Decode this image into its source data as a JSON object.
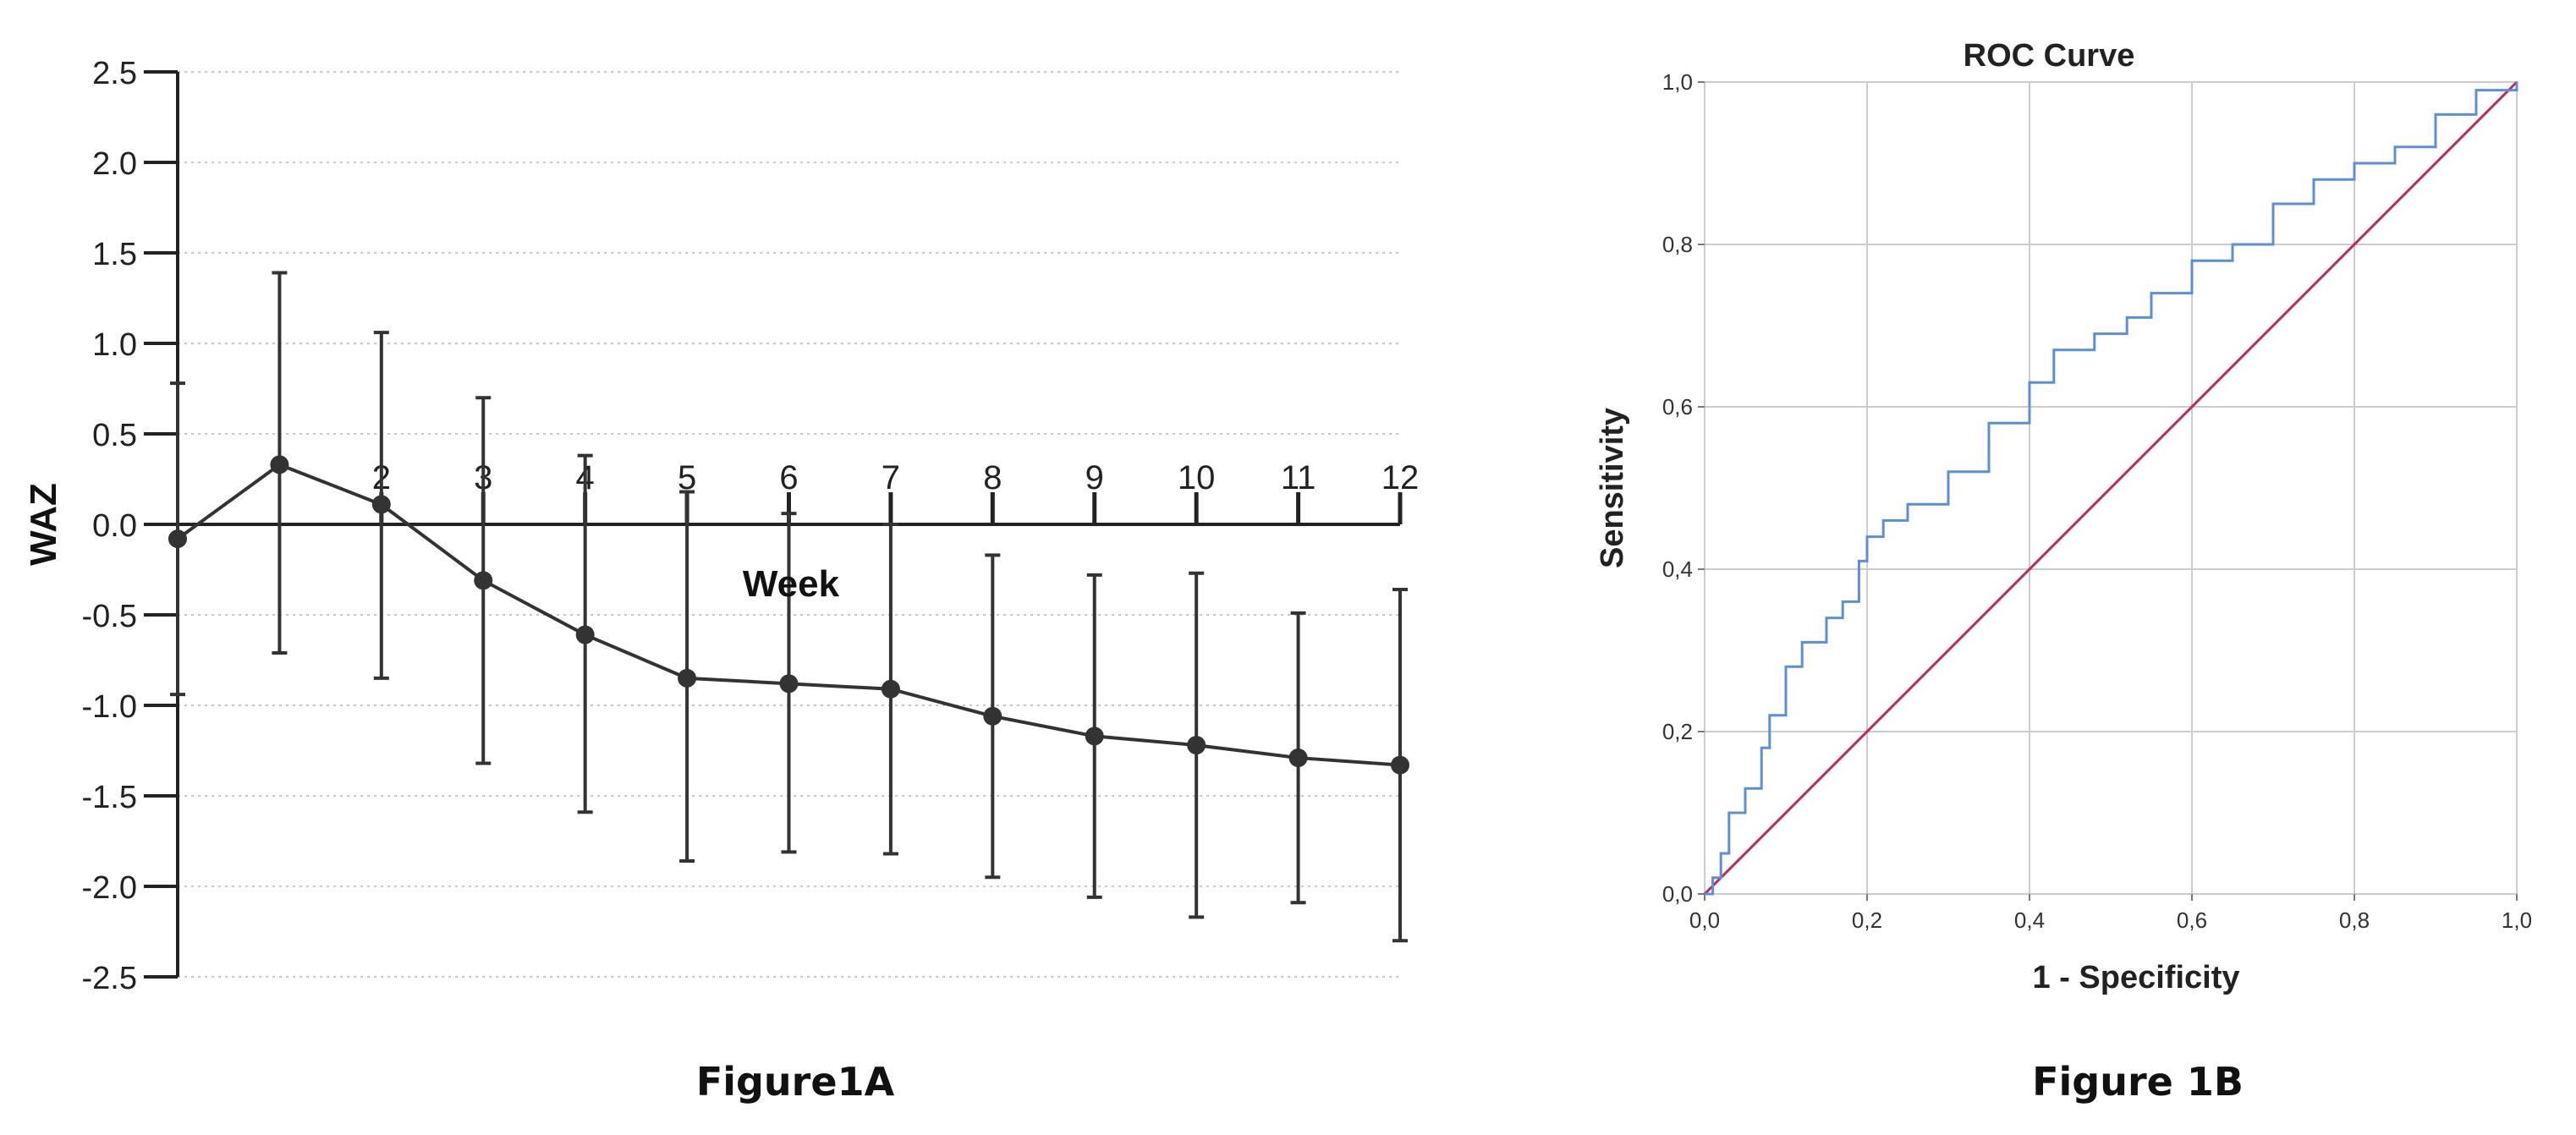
{
  "chart_data": [
    {
      "type": "line",
      "caption": "Figure1A",
      "ylabel": "WAZ",
      "xlabel": "Week",
      "xlim": [
        0,
        12
      ],
      "ylim": [
        -2.5,
        2.5
      ],
      "y_ticks": [
        "2.5",
        "2.0",
        "1.5",
        "1.0",
        "0.5",
        "0.0",
        "-0.5",
        "-1.0",
        "-1.5",
        "-2.0",
        "-2.5"
      ],
      "x_ticks": [
        "2",
        "3",
        "4",
        "5",
        "6",
        "7",
        "8",
        "9",
        "10",
        "11",
        "12"
      ],
      "grid": true,
      "series": [
        {
          "x": [
            0,
            1,
            2,
            3,
            4,
            5,
            6,
            7,
            8,
            9,
            10,
            11,
            12
          ],
          "mean": [
            -0.08,
            0.33,
            0.11,
            -0.31,
            -0.61,
            -0.85,
            -0.88,
            -0.91,
            -1.06,
            -1.17,
            -1.22,
            -1.29,
            -1.33
          ],
          "upper": [
            0.78,
            1.39,
            1.06,
            0.7,
            0.38,
            0.18,
            0.06,
            0.0,
            -0.17,
            -0.28,
            -0.27,
            -0.49,
            -0.36
          ],
          "lower": [
            -0.94,
            -0.71,
            -0.85,
            -1.32,
            -1.59,
            -1.86,
            -1.81,
            -1.82,
            -1.95,
            -2.06,
            -2.17,
            -2.09,
            -2.3
          ]
        }
      ]
    },
    {
      "type": "line",
      "caption": "Figure 1B",
      "title": "ROC Curve",
      "xlabel": "1 - Specificity",
      "ylabel": "Sensitivity",
      "xlim": [
        0,
        1
      ],
      "ylim": [
        0,
        1
      ],
      "x_ticks": [
        "0,0",
        "0,2",
        "0,4",
        "0,6",
        "0,8",
        "1,0"
      ],
      "y_ticks": [
        "0,0",
        "0,2",
        "0,4",
        "0,6",
        "0,8",
        "1,0"
      ],
      "grid": true,
      "colors": {
        "roc": "#5b8fd6",
        "reference": "#c0285a"
      },
      "series": [
        {
          "x": [
            0,
            0.01,
            0.02,
            0.03,
            0.05,
            0.07,
            0.08,
            0.1,
            0.12,
            0.15,
            0.17,
            0.19,
            0.2,
            0.22,
            0.25,
            0.3,
            0.35,
            0.4,
            0.43,
            0.48,
            0.52,
            0.55,
            0.6,
            0.65,
            0.7,
            0.75,
            0.8,
            0.85,
            0.9,
            0.95,
            1.0
          ],
          "y": [
            0,
            0.02,
            0.05,
            0.1,
            0.13,
            0.18,
            0.22,
            0.28,
            0.31,
            0.34,
            0.36,
            0.41,
            0.44,
            0.46,
            0.48,
            0.52,
            0.58,
            0.63,
            0.67,
            0.69,
            0.71,
            0.74,
            0.78,
            0.8,
            0.85,
            0.88,
            0.9,
            0.92,
            0.96,
            0.99,
            1.0
          ]
        },
        {
          "x": [
            0,
            1
          ],
          "y": [
            0,
            1
          ]
        }
      ]
    }
  ]
}
